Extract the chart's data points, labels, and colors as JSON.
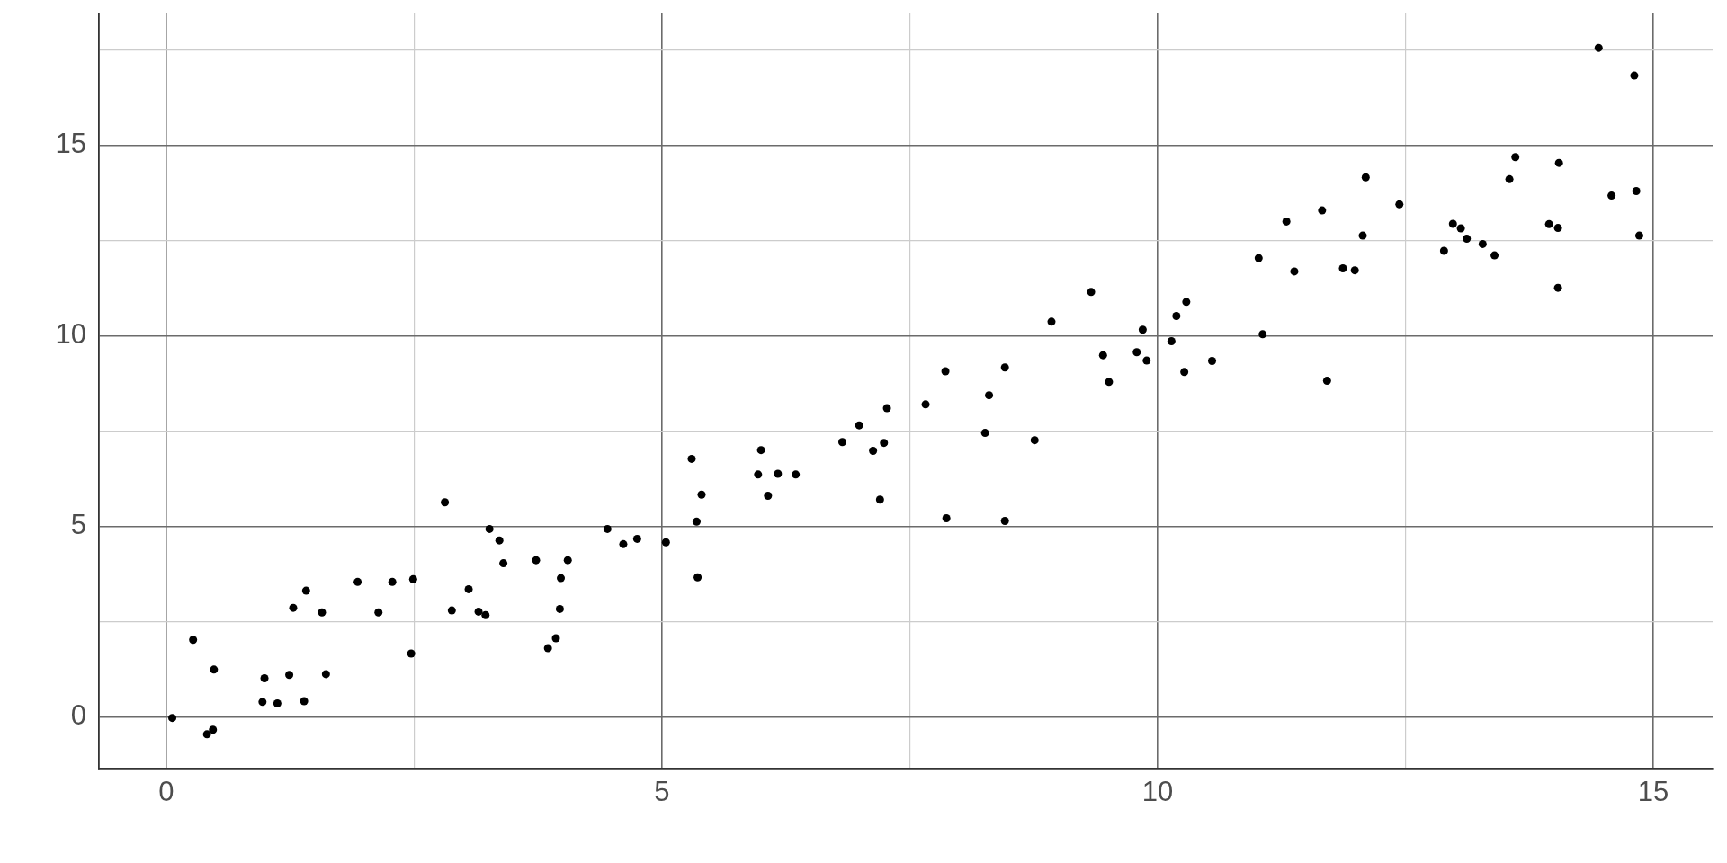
{
  "chart_data": {
    "type": "scatter",
    "color": "#000000",
    "marker": "circle",
    "grid": true,
    "xlim": [
      -0.68,
      15.6
    ],
    "ylim": [
      -1.36,
      18.46
    ],
    "xticks": [
      0,
      {
        "value": 2.5,
        "label": null
      },
      5,
      {
        "value": 7.5,
        "label": null
      },
      10,
      {
        "value": 12.5,
        "label": null
      },
      15
    ],
    "yticks": [
      0,
      {
        "value": 2.5,
        "label": null
      },
      5,
      {
        "value": 7.5,
        "label": null
      },
      10,
      {
        "value": 12.5,
        "label": null
      },
      15,
      {
        "value": 17.5,
        "label": null
      }
    ],
    "x": [
      0.06,
      0.27,
      0.41,
      0.47,
      0.48,
      0.97,
      0.99,
      1.12,
      1.24,
      1.28,
      1.39,
      1.41,
      1.57,
      1.61,
      1.93,
      2.14,
      2.28,
      2.47,
      2.49,
      2.81,
      2.88,
      3.05,
      3.15,
      3.22,
      3.26,
      3.36,
      3.4,
      3.73,
      3.85,
      3.93,
      3.97,
      3.98,
      4.05,
      4.45,
      4.61,
      4.75,
      5.04,
      5.3,
      5.35,
      5.36,
      5.4,
      5.97,
      6,
      6.07,
      6.17,
      6.35,
      6.82,
      6.99,
      7.13,
      7.2,
      7.24,
      7.27,
      7.66,
      7.86,
      7.87,
      8.26,
      8.3,
      8.46,
      8.46,
      8.76,
      8.93,
      9.33,
      9.45,
      9.51,
      9.79,
      9.85,
      9.89,
      10.14,
      10.19,
      10.27,
      10.29,
      10.55,
      11.02,
      11.06,
      11.3,
      11.38,
      11.66,
      11.71,
      11.87,
      11.99,
      12.07,
      12.1,
      12.44,
      12.89,
      12.98,
      13.06,
      13.12,
      13.28,
      13.4,
      13.55,
      13.61,
      13.95,
      14.04,
      14.04,
      14.05,
      14.45,
      14.58,
      14.81,
      14.83,
      14.86
    ],
    "values": [
      -0.03,
      2.02,
      -0.46,
      -0.34,
      1.24,
      0.39,
      1.01,
      0.35,
      1.1,
      2.86,
      0.41,
      3.31,
      2.74,
      1.12,
      3.54,
      2.74,
      3.54,
      1.66,
      3.61,
      5.63,
      2.79,
      3.35,
      2.76,
      2.67,
      4.93,
      4.63,
      4.03,
      4.11,
      1.8,
      2.06,
      2.83,
      3.64,
      4.11,
      4.93,
      4.53,
      4.67,
      4.58,
      6.77,
      5.12,
      3.66,
      5.83,
      6.36,
      7,
      5.8,
      6.38,
      6.36,
      7.21,
      7.65,
      6.98,
      5.7,
      7.19,
      8.1,
      8.2,
      9.07,
      5.21,
      7.45,
      8.44,
      9.17,
      5.14,
      7.26,
      10.37,
      11.15,
      9.49,
      8.79,
      9.57,
      10.16,
      9.35,
      9.86,
      10.52,
      9.05,
      10.89,
      9.34,
      12.04,
      10.04,
      13,
      11.69,
      13.29,
      8.82,
      11.77,
      11.72,
      12.63,
      14.16,
      13.45,
      12.23,
      12.94,
      12.82,
      12.55,
      12.41,
      12.11,
      14.11,
      14.69,
      12.93,
      12.83,
      11.26,
      14.54,
      17.56,
      13.68,
      16.83,
      13.8,
      12.63
    ]
  }
}
